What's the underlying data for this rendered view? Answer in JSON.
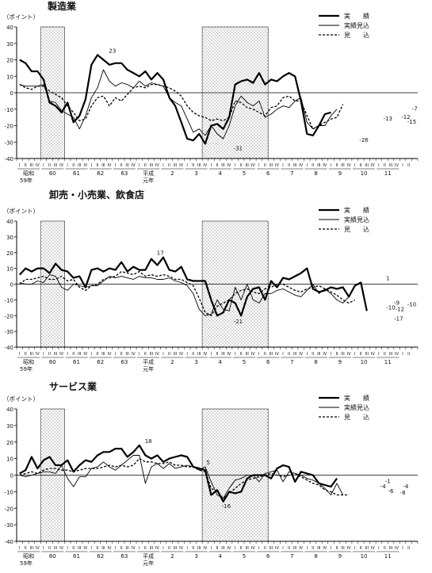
{
  "chart_data": [
    {
      "type": "line",
      "title": "製造業",
      "ylabel": "（ポイント）",
      "ylim": [
        -40,
        40
      ],
      "yticks": [
        40,
        30,
        20,
        10,
        0,
        -10,
        -20,
        -30,
        -40
      ],
      "legend": [
        "実　　績",
        "実績見込",
        "見　　込"
      ],
      "shaded_quarters": [
        [
          4,
          8
        ],
        [
          31,
          42
        ]
      ],
      "annotations": [
        {
          "text": "23",
          "q": 16,
          "v": 23
        },
        {
          "text": "-31",
          "q": 37,
          "v": -31
        },
        {
          "text": "-26",
          "q": 58,
          "v": -26
        },
        {
          "text": "-13",
          "q": 62,
          "v": -13
        },
        {
          "text": "-12",
          "q": 65,
          "v": -12
        },
        {
          "text": "-15",
          "q": 66,
          "v": -15
        },
        {
          "text": "-7",
          "q": 66.5,
          "v": -7
        }
      ],
      "series": [
        {
          "name": "実　　績",
          "style": "solid-thick",
          "values": [
            20,
            18,
            13,
            13,
            8,
            -6,
            -8,
            -12,
            -6,
            -18,
            -14,
            -4,
            17,
            23,
            20,
            17,
            18,
            18,
            14,
            12,
            10,
            13,
            8,
            12,
            8,
            -3,
            -8,
            -18,
            -28,
            -29,
            -25,
            -31,
            -20,
            -19,
            -22,
            -15,
            5,
            7,
            8,
            6,
            12,
            5,
            8,
            7,
            10,
            12,
            10,
            -5,
            -25,
            -26,
            -20,
            -13,
            -12
          ]
        },
        {
          "name": "実績見込",
          "style": "solid-thin",
          "values": [
            5,
            4,
            4,
            4,
            5,
            -5,
            -6,
            -11,
            -13,
            -15,
            -22,
            -14,
            -3,
            3,
            14,
            7,
            4,
            6,
            5,
            3,
            7,
            4,
            6,
            5,
            4,
            -3,
            -6,
            -8,
            -16,
            -24,
            -22,
            -26,
            -20,
            -25,
            -28,
            -20,
            -8,
            -2,
            -6,
            -8,
            -5,
            -15,
            -13,
            -10,
            -8,
            -9,
            -5,
            -3,
            -18,
            -22,
            -20,
            -20,
            -14,
            -10
          ]
        },
        {
          "name": "見　　込",
          "style": "dashed",
          "values": [
            5,
            3,
            2,
            4,
            4,
            1,
            -1,
            -3,
            -8,
            -12,
            -17,
            -16,
            -8,
            -3,
            -2,
            -8,
            -3,
            -5,
            -1,
            3,
            4,
            3,
            5,
            5,
            4,
            3,
            1,
            -2,
            -8,
            -12,
            -14,
            -15,
            -17,
            -16,
            -17,
            -15,
            -5,
            -6,
            -9,
            -10,
            -12,
            -14,
            -9,
            -8,
            -3,
            -2,
            -5,
            -5,
            -14,
            -22,
            -20,
            -18,
            -16,
            -15,
            -7
          ]
        }
      ]
    },
    {
      "type": "line",
      "title": "卸売・小売業、飲食店",
      "ylabel": "（ポイント）",
      "ylim": [
        -40,
        40
      ],
      "yticks": [
        40,
        30,
        20,
        10,
        0,
        -10,
        -20,
        -30,
        -40
      ],
      "legend": [
        "実　　績",
        "実績見込",
        "見　　込"
      ],
      "shaded_quarters": [
        [
          4,
          8
        ],
        [
          31,
          42
        ]
      ],
      "annotations": [
        {
          "text": "17",
          "q": 24,
          "v": 17
        },
        {
          "text": "-21",
          "q": 37,
          "v": -21
        },
        {
          "text": "1",
          "q": 62,
          "v": 1
        },
        {
          "text": "-9",
          "q": 63.5,
          "v": -9
        },
        {
          "text": "-10",
          "q": 62.5,
          "v": -12
        },
        {
          "text": "-12",
          "q": 64,
          "v": -13
        },
        {
          "text": "-10",
          "q": 66,
          "v": -10
        },
        {
          "text": "-17",
          "q": 63.8,
          "v": -19
        }
      ],
      "series": [
        {
          "name": "実　　績",
          "style": "solid-thick",
          "values": [
            6,
            10,
            8,
            10,
            10,
            7,
            13,
            9,
            8,
            4,
            5,
            -2,
            9,
            10,
            8,
            10,
            9,
            14,
            8,
            11,
            9,
            9,
            16,
            12,
            17,
            9,
            8,
            11,
            3,
            2,
            2,
            2,
            -10,
            -20,
            -18,
            -10,
            -12,
            -20,
            -8,
            -3,
            -2,
            -10,
            2,
            -2,
            4,
            3,
            5,
            7,
            10,
            -3,
            -5,
            -4,
            -2,
            -3,
            -2,
            -8,
            -1,
            1,
            -17
          ]
        },
        {
          "name": "実績見込",
          "style": "solid-thin",
          "values": [
            1,
            0,
            0,
            2,
            1,
            6,
            5,
            -2,
            -4,
            0,
            -1,
            -2,
            -1,
            -1,
            2,
            5,
            4,
            5,
            4,
            3,
            5,
            4,
            4,
            3,
            3,
            4,
            2,
            1,
            -1,
            -6,
            -16,
            -20,
            -19,
            -10,
            -16,
            -17,
            -2,
            -10,
            0,
            -10,
            -12,
            -6,
            -6,
            -4,
            -3,
            -5,
            -7,
            -8,
            -4,
            0,
            -6,
            -3,
            -6,
            -10,
            -12,
            -8
          ]
        },
        {
          "name": "見　　込",
          "style": "dashed",
          "values": [
            0,
            3,
            3,
            4,
            5,
            3,
            3,
            5,
            2,
            3,
            -2,
            -4,
            -1,
            0,
            3,
            4,
            5,
            8,
            7,
            6,
            8,
            5,
            6,
            5,
            6,
            5,
            3,
            3,
            1,
            -1,
            -9,
            -18,
            -20,
            -14,
            -12,
            -10,
            -6,
            -4,
            -3,
            -5,
            -6,
            -3,
            -2,
            0,
            0,
            -2,
            -4,
            -5,
            -3,
            -2,
            -1,
            -3,
            -5,
            -7,
            -10,
            -12,
            -10
          ]
        }
      ]
    },
    {
      "type": "line",
      "title": "サービス業",
      "ylabel": "（ポイント）",
      "ylim": [
        -40,
        40
      ],
      "yticks": [
        40,
        30,
        20,
        10,
        0,
        -10,
        -20,
        -30,
        -40
      ],
      "legend": [
        "実　　績",
        "実績見込",
        "見　　込"
      ],
      "shaded_quarters": [
        [
          4,
          8
        ],
        [
          31,
          42
        ]
      ],
      "annotations": [
        {
          "text": "18",
          "q": 22,
          "v": 18
        },
        {
          "text": "5",
          "q": 32,
          "v": 5
        },
        {
          "text": "-16",
          "q": 35,
          "v": -16
        },
        {
          "text": "-4",
          "q": 61.2,
          "v": -4
        },
        {
          "text": "-1",
          "q": 62,
          "v": -1
        },
        {
          "text": "-4",
          "q": 65,
          "v": -4
        },
        {
          "text": "-6",
          "q": 62.5,
          "v": -7
        },
        {
          "text": "-8",
          "q": 64.5,
          "v": -8
        }
      ],
      "series": [
        {
          "name": "実　　績",
          "style": "solid-thick",
          "values": [
            1,
            3,
            11,
            4,
            9,
            11,
            6,
            6,
            9,
            2,
            6,
            9,
            8,
            12,
            14,
            14,
            16,
            16,
            11,
            14,
            18,
            12,
            10,
            12,
            8,
            10,
            11,
            12,
            11,
            5,
            4,
            3,
            -12,
            -9,
            -16,
            -10,
            -11,
            -10,
            -2,
            0,
            0,
            0,
            -2,
            4,
            6,
            5,
            -4,
            2,
            1,
            0,
            -5,
            -6,
            -7,
            -2
          ]
        },
        {
          "name": "実績見込",
          "style": "solid-thin",
          "values": [
            0,
            -1,
            0,
            1,
            2,
            2,
            1,
            6,
            -2,
            -7,
            -1,
            -1,
            4,
            5,
            8,
            5,
            3,
            6,
            9,
            12,
            12,
            -5,
            5,
            7,
            4,
            7,
            4,
            5,
            6,
            5,
            3,
            5,
            -4,
            -12,
            -14,
            -8,
            -3,
            -2,
            0,
            0,
            -4,
            1,
            2,
            3,
            -4,
            2,
            1,
            0,
            -2,
            -3,
            -5,
            -8,
            -12,
            -5,
            -12
          ]
        },
        {
          "name": "見　　込",
          "style": "dashed",
          "values": [
            0,
            1,
            2,
            1,
            3,
            4,
            4,
            3,
            3,
            2,
            3,
            4,
            4,
            4,
            5,
            6,
            5,
            6,
            5,
            6,
            10,
            8,
            8,
            7,
            7,
            8,
            6,
            6,
            5,
            5,
            3,
            2,
            -8,
            -10,
            -14,
            -11,
            -8,
            -5,
            -3,
            -2,
            -1,
            0,
            1,
            0,
            -1,
            0,
            1,
            -1,
            -3,
            -5,
            -6,
            -9,
            -10,
            -12,
            -12,
            -12
          ]
        }
      ]
    }
  ],
  "x_axis": {
    "quarter_labels": [
      "I",
      "II",
      "III",
      "IV"
    ],
    "year_labels": [
      "昭和",
      "60",
      "61",
      "62",
      "63",
      "平成",
      "2",
      "3",
      "4",
      "5",
      "6",
      "7",
      "8",
      "9",
      "10",
      "11"
    ],
    "era_sub_labels": [
      "59年",
      "元年"
    ]
  }
}
